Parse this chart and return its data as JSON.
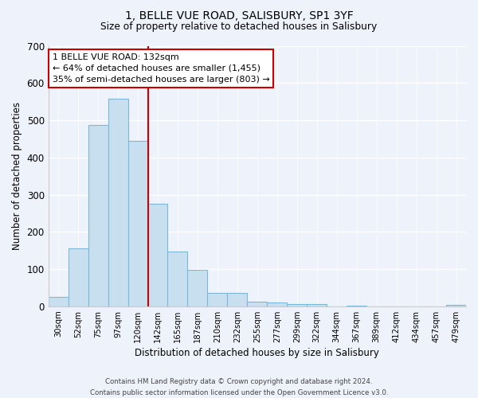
{
  "title": "1, BELLE VUE ROAD, SALISBURY, SP1 3YF",
  "subtitle": "Size of property relative to detached houses in Salisbury",
  "xlabel": "Distribution of detached houses by size in Salisbury",
  "ylabel": "Number of detached properties",
  "bar_labels": [
    "30sqm",
    "52sqm",
    "75sqm",
    "97sqm",
    "120sqm",
    "142sqm",
    "165sqm",
    "187sqm",
    "210sqm",
    "232sqm",
    "255sqm",
    "277sqm",
    "299sqm",
    "322sqm",
    "344sqm",
    "367sqm",
    "389sqm",
    "412sqm",
    "434sqm",
    "457sqm",
    "479sqm"
  ],
  "bar_heights": [
    25,
    155,
    488,
    557,
    445,
    275,
    147,
    98,
    37,
    37,
    13,
    10,
    5,
    5,
    0,
    2,
    0,
    0,
    0,
    0,
    3
  ],
  "bar_color": "#c8dff0",
  "bar_edge_color": "#7cb8d8",
  "vline_color": "#cc0000",
  "vline_index": 4.5,
  "annotation_title": "1 BELLE VUE ROAD: 132sqm",
  "annotation_line1": "← 64% of detached houses are smaller (1,455)",
  "annotation_line2": "35% of semi-detached houses are larger (803) →",
  "annotation_box_color": "#ffffff",
  "annotation_box_edge": "#cc0000",
  "ylim": [
    0,
    700
  ],
  "yticks": [
    0,
    100,
    200,
    300,
    400,
    500,
    600,
    700
  ],
  "footer_line1": "Contains HM Land Registry data © Crown copyright and database right 2024.",
  "footer_line2": "Contains public sector information licensed under the Open Government Licence v3.0.",
  "bg_color": "#eef2fa"
}
